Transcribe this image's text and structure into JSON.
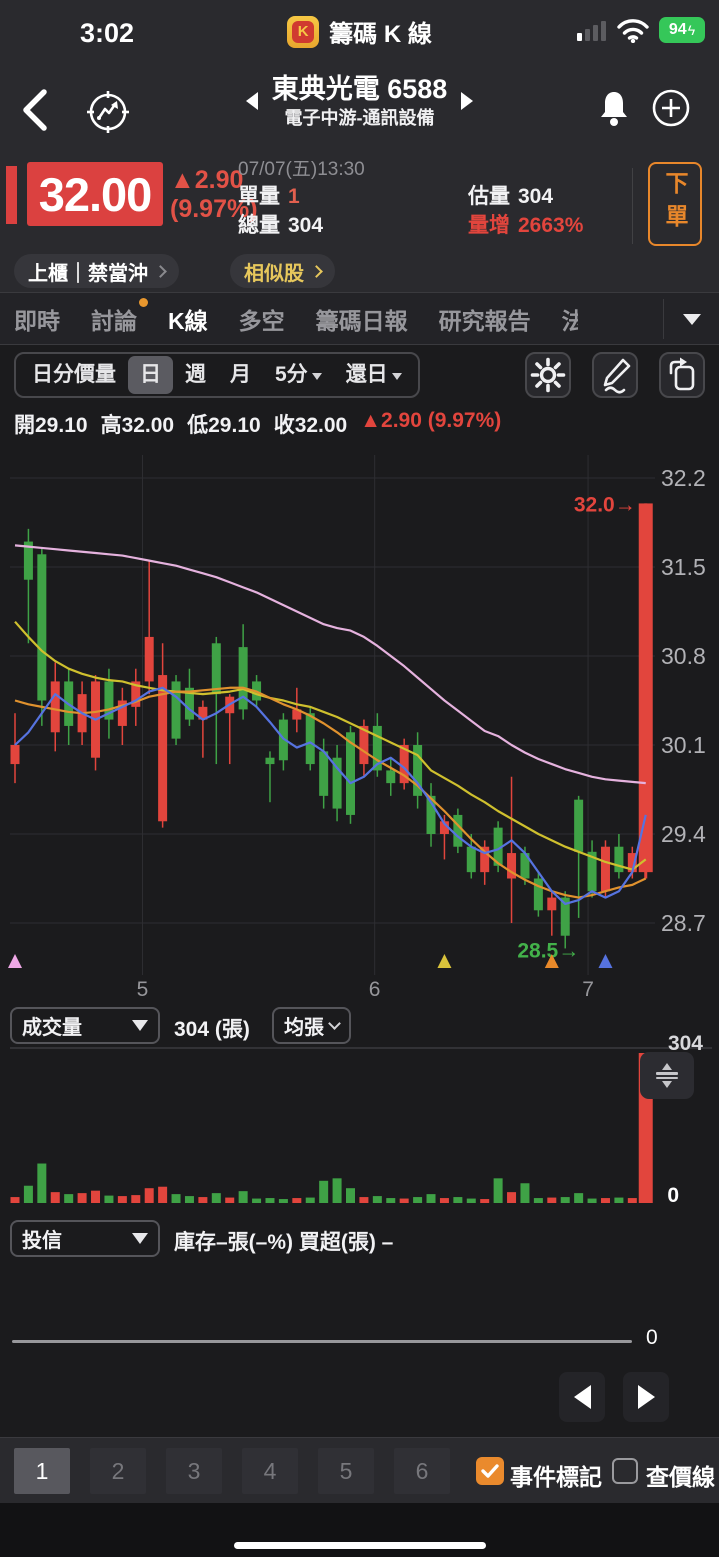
{
  "status_bar": {
    "time": "3:02",
    "app_name": "籌碼 K 線",
    "app_initial": "K",
    "battery_pct": "94",
    "battery_bolt": "ϟ"
  },
  "header": {
    "title": "東典光電 6588",
    "subtitle": "電子中游-通訊設備"
  },
  "quote": {
    "price": "32.00",
    "change": "▲2.90",
    "change_pct": "(9.97%)",
    "datetime": "07/07(五)13:30",
    "unit_vol_label": "單量",
    "unit_vol": "1",
    "total_vol_label": "總量",
    "total_vol": "304",
    "est_vol_label": "估量",
    "est_vol": "304",
    "vol_incr_label": "量增",
    "vol_incr": "2663%",
    "order_label": "下單"
  },
  "tags": {
    "market": "上櫃｜禁當沖",
    "similar": "相似股"
  },
  "tabs": {
    "items": [
      {
        "label": "即時"
      },
      {
        "label": "討論"
      },
      {
        "label": "K線"
      },
      {
        "label": "多空"
      },
      {
        "label": "籌碼日報"
      },
      {
        "label": "研究報告"
      },
      {
        "label": "法"
      }
    ]
  },
  "toolbar": {
    "segments": [
      {
        "label": "日分價量"
      },
      {
        "label": "日"
      },
      {
        "label": "週"
      },
      {
        "label": "月"
      },
      {
        "label": "5分"
      },
      {
        "label": "還日"
      }
    ]
  },
  "ohlc": {
    "items": [
      {
        "label": "開",
        "value": "29.10"
      },
      {
        "label": "高",
        "value": "32.00"
      },
      {
        "label": "低",
        "value": "29.10"
      },
      {
        "label": "收",
        "value": "32.00"
      }
    ],
    "change": "▲2.90 (9.97%)"
  },
  "volume_header": {
    "indicator": "成交量",
    "value_text": "304 (張)",
    "avg_label": "均張"
  },
  "holder": {
    "indicator": "投信",
    "info": "庫存–張(–%)  買超(張) –",
    "zero": "0"
  },
  "pager": {
    "pages": [
      "1",
      "2",
      "3",
      "4",
      "5",
      "6"
    ],
    "active": "1",
    "event_label": "事件標記",
    "event_checked": true,
    "price_line_label": "查價線",
    "price_line_checked": false
  },
  "chart_data": {
    "type": "candlestick+volume",
    "title": "東典光電 6588 日K",
    "up_color": "#e2453d",
    "down_color": "#3fa246",
    "grid_color": "#2e2e32",
    "y_ticks": [
      32.2,
      31.5,
      30.8,
      30.1,
      29.4,
      28.7
    ],
    "x_ticks": [
      {
        "label": "5",
        "index": 9.5
      },
      {
        "label": "6",
        "index": 26.8
      },
      {
        "label": "7",
        "index": 42.7
      }
    ],
    "candles": [
      [
        29.95,
        30.35,
        29.8,
        30.1,
        12
      ],
      [
        31.7,
        31.8,
        30.9,
        31.4,
        35
      ],
      [
        31.6,
        31.65,
        30.25,
        30.45,
        80
      ],
      [
        30.2,
        30.75,
        30.05,
        30.6,
        22
      ],
      [
        30.6,
        30.7,
        30.1,
        30.25,
        18
      ],
      [
        30.2,
        30.6,
        30.1,
        30.5,
        20
      ],
      [
        30.0,
        30.65,
        29.9,
        30.6,
        25
      ],
      [
        30.6,
        30.7,
        30.15,
        30.3,
        15
      ],
      [
        30.25,
        30.55,
        30.1,
        30.45,
        14
      ],
      [
        30.4,
        30.7,
        30.25,
        30.6,
        16
      ],
      [
        30.6,
        31.55,
        30.5,
        30.95,
        30
      ],
      [
        29.5,
        30.9,
        29.45,
        30.65,
        33
      ],
      [
        30.6,
        30.65,
        30.1,
        30.15,
        18
      ],
      [
        30.55,
        30.7,
        30.25,
        30.3,
        14
      ],
      [
        30.3,
        30.45,
        30.0,
        30.4,
        12
      ],
      [
        30.9,
        30.95,
        29.95,
        30.5,
        20
      ],
      [
        30.35,
        30.5,
        29.95,
        30.48,
        11
      ],
      [
        30.87,
        31.05,
        30.3,
        30.38,
        24
      ],
      [
        30.6,
        30.65,
        30.4,
        30.45,
        9
      ],
      [
        30.0,
        30.05,
        29.65,
        29.95,
        10
      ],
      [
        30.3,
        30.35,
        29.9,
        29.98,
        8
      ],
      [
        30.3,
        30.55,
        30.2,
        30.38,
        10
      ],
      [
        30.35,
        30.4,
        29.9,
        29.95,
        11
      ],
      [
        30.05,
        30.15,
        29.6,
        29.7,
        45
      ],
      [
        30.0,
        30.1,
        29.5,
        29.6,
        50
      ],
      [
        30.2,
        30.25,
        29.48,
        29.55,
        30
      ],
      [
        29.95,
        30.3,
        29.85,
        30.25,
        12
      ],
      [
        30.25,
        30.35,
        29.85,
        29.9,
        14
      ],
      [
        29.9,
        30.0,
        29.7,
        29.8,
        10
      ],
      [
        29.8,
        30.15,
        29.75,
        30.1,
        9
      ],
      [
        30.1,
        30.2,
        29.6,
        29.7,
        12
      ],
      [
        29.7,
        29.8,
        29.3,
        29.4,
        18
      ],
      [
        29.4,
        29.55,
        29.2,
        29.5,
        10
      ],
      [
        29.55,
        29.6,
        29.25,
        29.3,
        12
      ],
      [
        29.3,
        29.4,
        29.05,
        29.1,
        9
      ],
      [
        29.1,
        29.35,
        29.0,
        29.3,
        8
      ],
      [
        29.45,
        29.5,
        29.1,
        29.15,
        50
      ],
      [
        29.05,
        29.85,
        28.7,
        29.25,
        22
      ],
      [
        29.25,
        29.3,
        29.0,
        29.05,
        40
      ],
      [
        29.05,
        29.1,
        28.75,
        28.8,
        10
      ],
      [
        28.8,
        28.95,
        28.6,
        28.9,
        11
      ],
      [
        28.9,
        28.95,
        28.5,
        28.6,
        12
      ],
      [
        29.67,
        29.7,
        28.74,
        29.26,
        20
      ],
      [
        29.26,
        29.35,
        28.9,
        28.95,
        9
      ],
      [
        28.95,
        29.35,
        28.9,
        29.3,
        10
      ],
      [
        29.3,
        29.4,
        29.05,
        29.1,
        11
      ],
      [
        29.1,
        29.3,
        29.05,
        29.25,
        10
      ],
      [
        29.1,
        32.0,
        29.05,
        32.0,
        304
      ]
    ],
    "ma_lines": [
      {
        "name": "MA-long-pink",
        "color": "#e5b2de",
        "values": [
          31.67,
          31.66,
          31.65,
          31.64,
          31.63,
          31.62,
          31.61,
          31.6,
          31.59,
          31.57,
          31.55,
          31.53,
          31.51,
          31.48,
          31.45,
          31.42,
          31.38,
          31.34,
          31.3,
          31.25,
          31.2,
          31.15,
          31.1,
          31.05,
          31.02,
          31.0,
          30.95,
          30.88,
          30.8,
          30.72,
          30.63,
          30.54,
          30.45,
          30.37,
          30.29,
          30.21,
          30.17,
          30.1,
          30.04,
          29.99,
          29.95,
          29.91,
          29.88,
          29.85,
          29.83,
          29.82,
          29.81,
          29.8
        ]
      },
      {
        "name": "MA20-yellow",
        "color": "#cfc02e",
        "values": [
          31.07,
          30.95,
          30.84,
          30.76,
          30.7,
          30.66,
          30.63,
          30.61,
          30.6,
          30.57,
          30.55,
          30.53,
          30.52,
          30.51,
          30.5,
          30.51,
          30.52,
          30.54,
          30.5,
          30.47,
          30.45,
          30.42,
          30.4,
          30.36,
          30.32,
          30.27,
          30.22,
          30.17,
          30.12,
          30.07,
          30.02,
          29.9,
          29.84,
          29.78,
          29.71,
          29.65,
          29.58,
          29.52,
          29.46,
          29.4,
          29.35,
          29.3,
          29.26,
          29.22,
          29.18,
          29.15,
          29.12,
          29.2
        ]
      },
      {
        "name": "MA10-orange",
        "color": "#e0922e",
        "values": [
          30.45,
          30.42,
          30.4,
          30.38,
          30.36,
          30.35,
          30.36,
          30.38,
          30.41,
          30.44,
          30.48,
          30.5,
          30.52,
          30.52,
          30.53,
          30.54,
          30.55,
          30.55,
          30.52,
          30.47,
          30.42,
          30.38,
          30.33,
          30.27,
          30.2,
          30.12,
          30.05,
          29.98,
          29.92,
          29.86,
          29.78,
          29.68,
          29.58,
          29.47,
          29.36,
          29.26,
          29.17,
          29.1,
          29.04,
          28.99,
          28.95,
          28.92,
          28.9,
          28.92,
          28.95,
          28.98,
          29.0,
          29.05
        ]
      },
      {
        "name": "MA5-blue",
        "color": "#5673e0",
        "values": [
          30.1,
          30.2,
          30.35,
          30.5,
          30.42,
          30.35,
          30.3,
          30.35,
          30.4,
          30.45,
          30.52,
          30.55,
          30.48,
          30.38,
          30.3,
          30.35,
          30.42,
          30.48,
          30.4,
          30.28,
          30.15,
          30.08,
          30.12,
          30.05,
          29.92,
          29.8,
          29.85,
          29.95,
          30.0,
          29.92,
          29.8,
          29.65,
          29.48,
          29.38,
          29.3,
          29.25,
          29.28,
          29.35,
          29.25,
          29.1,
          28.95,
          28.85,
          28.88,
          28.95,
          28.9,
          28.95,
          29.1,
          29.55
        ]
      }
    ],
    "annotations": {
      "high_label": {
        "text": "32.0→",
        "price": 32.0,
        "index": 47,
        "color": "#e2453d"
      },
      "low_label": {
        "text": "28.5→",
        "price": 28.5,
        "index": 41,
        "color": "#43b14a"
      }
    },
    "event_markers": [
      {
        "color": "#efa8e6",
        "index": 0
      },
      {
        "color": "#d9c33b",
        "index": 32
      },
      {
        "color": "#e8892a",
        "index": 40
      },
      {
        "color": "#5673e0",
        "index": 44
      }
    ],
    "volume": {
      "max": 304,
      "y_max_label": "304",
      "y_min_label": "0",
      "unit": "張"
    }
  }
}
